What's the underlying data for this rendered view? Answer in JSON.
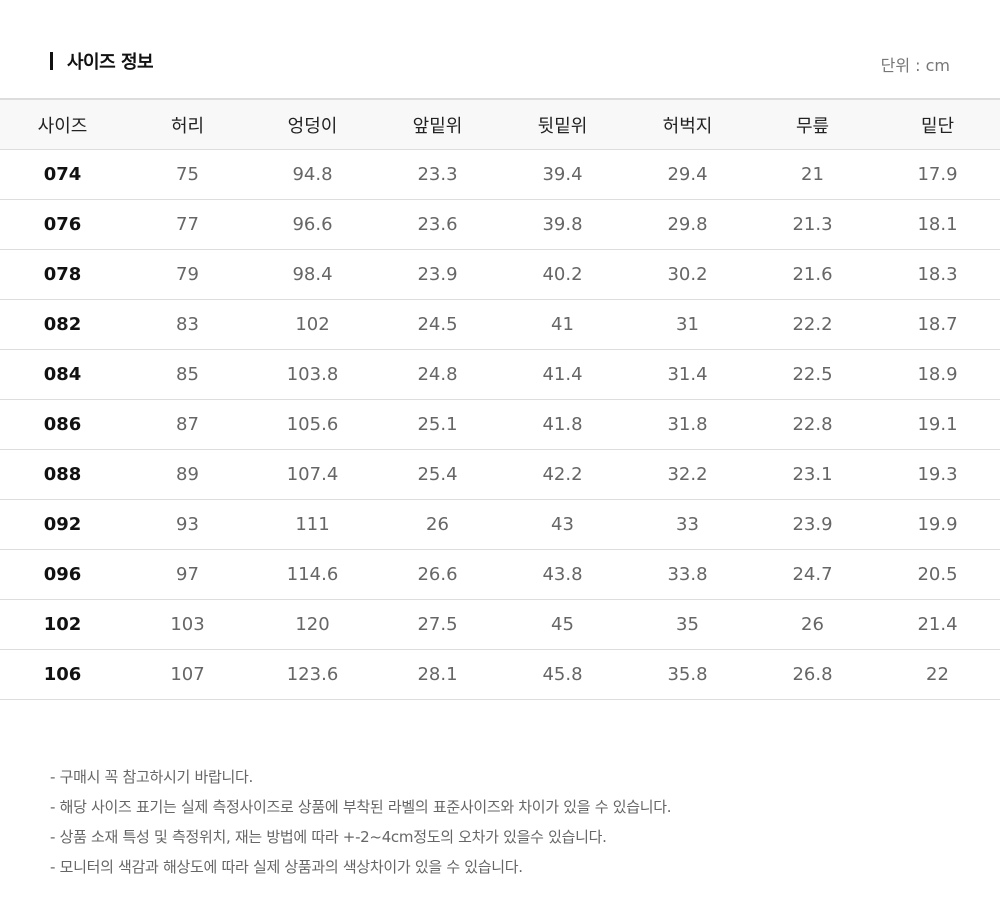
{
  "header": {
    "title": "사이즈 정보",
    "unit": "단위 : cm"
  },
  "table": {
    "columns": [
      "사이즈",
      "허리",
      "엉덩이",
      "앞밑위",
      "뒷밑위",
      "허벅지",
      "무릎",
      "밑단"
    ],
    "rows": [
      [
        "074",
        "75",
        "94.8",
        "23.3",
        "39.4",
        "29.4",
        "21",
        "17.9"
      ],
      [
        "076",
        "77",
        "96.6",
        "23.6",
        "39.8",
        "29.8",
        "21.3",
        "18.1"
      ],
      [
        "078",
        "79",
        "98.4",
        "23.9",
        "40.2",
        "30.2",
        "21.6",
        "18.3"
      ],
      [
        "082",
        "83",
        "102",
        "24.5",
        "41",
        "31",
        "22.2",
        "18.7"
      ],
      [
        "084",
        "85",
        "103.8",
        "24.8",
        "41.4",
        "31.4",
        "22.5",
        "18.9"
      ],
      [
        "086",
        "87",
        "105.6",
        "25.1",
        "41.8",
        "31.8",
        "22.8",
        "19.1"
      ],
      [
        "088",
        "89",
        "107.4",
        "25.4",
        "42.2",
        "32.2",
        "23.1",
        "19.3"
      ],
      [
        "092",
        "93",
        "111",
        "26",
        "43",
        "33",
        "23.9",
        "19.9"
      ],
      [
        "096",
        "97",
        "114.6",
        "26.6",
        "43.8",
        "33.8",
        "24.7",
        "20.5"
      ],
      [
        "102",
        "103",
        "120",
        "27.5",
        "45",
        "35",
        "26",
        "21.4"
      ],
      [
        "106",
        "107",
        "123.6",
        "28.1",
        "45.8",
        "35.8",
        "26.8",
        "22"
      ]
    ]
  },
  "notes": [
    "- 구매시 꼭 참고하시기 바랍니다.",
    "- 해당 사이즈 표기는 실제 측정사이즈로 상품에 부착된 라벨의 표준사이즈와 차이가 있을 수 있습니다.",
    "- 상품 소재 특성 및 측정위치, 재는 방법에 따라 +-2~4cm정도의 오차가 있을수 있습니다.",
    "- 모니터의 색감과 해상도에 따라 실제 상품과의 색상차이가 있을 수 있습니다."
  ]
}
